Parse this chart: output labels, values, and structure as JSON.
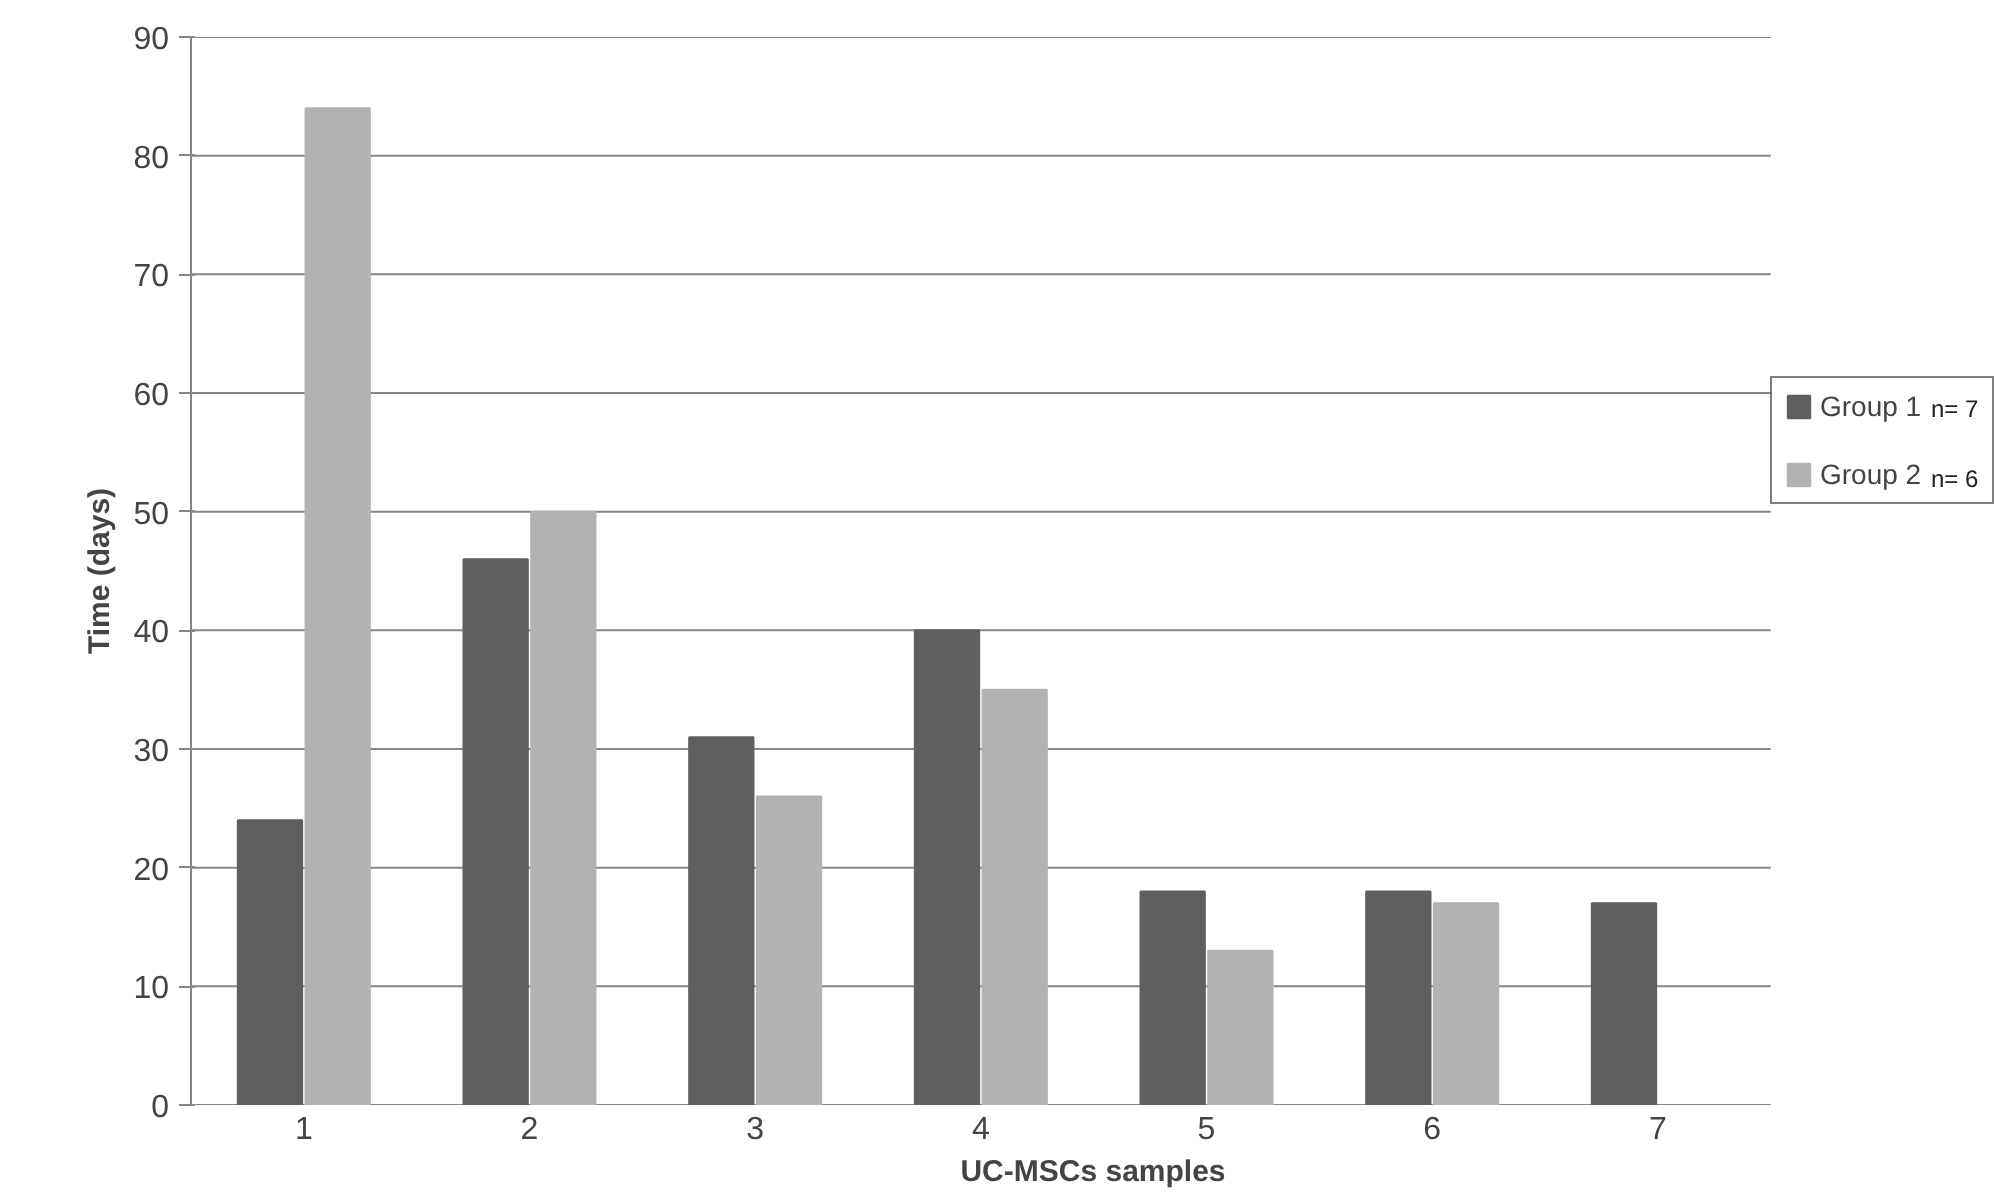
{
  "chart_data": {
    "type": "bar",
    "xlabel": "UC-MSCs samples",
    "ylabel": "Time (days)",
    "categories": [
      "1",
      "2",
      "3",
      "4",
      "5",
      "6",
      "7"
    ],
    "series": [
      {
        "name": "Group 1",
        "color": "#5f5f5f",
        "values": [
          24,
          46,
          31,
          40,
          18,
          18,
          17
        ]
      },
      {
        "name": "Group 2",
        "color": "#b2b2b2",
        "values": [
          84,
          50,
          26,
          35,
          13,
          17,
          null
        ]
      }
    ],
    "ylim": [
      0,
      90
    ],
    "yticks": [
      0,
      10,
      20,
      30,
      40,
      50,
      60,
      70,
      80,
      90
    ],
    "grid": "y",
    "legend": "right",
    "annotations": [
      "n= 7",
      "n= 6"
    ]
  }
}
